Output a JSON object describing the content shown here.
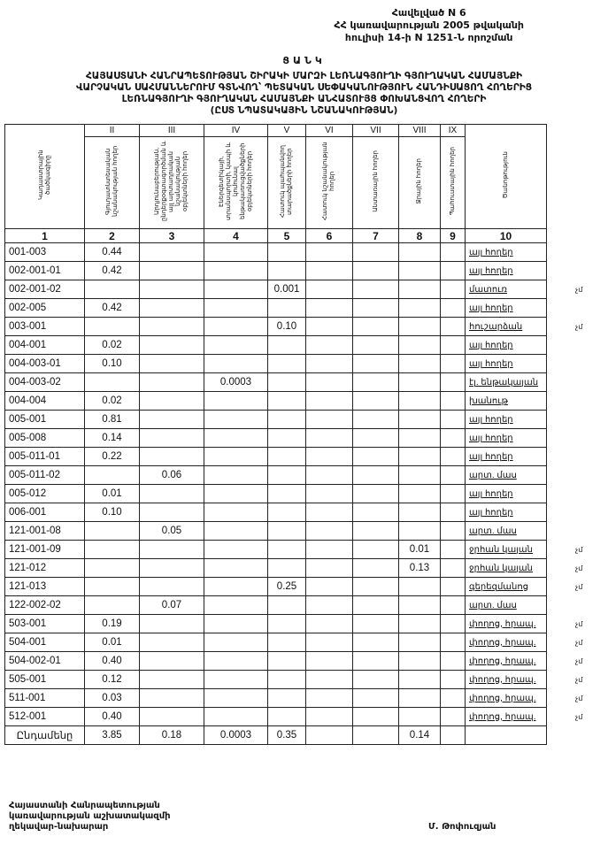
{
  "annex": [
    "Հավելված N 6",
    "ՀՀ կառավարության 2005 թվականի",
    "հուլիսի 14-ի N 1251-Ն որոշման"
  ],
  "list_title": "ՑԱՆԿ",
  "doc_title": [
    "ՀԱՅԱՍՏԱՆԻ ՀԱՆՐԱՊԵՏՈՒԹՅԱՆ ՇԻՐԱԿԻ ՄԱՐԶԻ ԼԵՌՆԱԳՅՈՒՂԻ ԳՅՈՒՂԱԿԱՆ ՀԱՄԱՅՆՔԻ",
    "ՎԱՐՉԱԿԱՆ ՍԱՀՄԱՆՆԵՐՈՒՄ ԳՏՆՎՈՂ՝ ՊԵՏԱԿԱՆ ՍԵՓԱԿԱՆՈՒԹՅՈՒՆ ՀԱՆԴԻՍԱՑՈՂ ՀՈՂԵՐԻՑ",
    "ԼԵՌՆԱԳՅՈՒՂԻ ԳՅՈՒՂԱԿԱՆ ՀԱՄԱՅՆՔԻ ԱՆՀԱՏՈՒՅՑ ՓՈԽԱՆՑՎՈՂ ՀՈՂԵՐԻ",
    "(ԸՍՏ ՆՊԱՏԱԿԱՅԻՆ ՆՇԱՆԱԿՈՒԹՅԱՆ)"
  ],
  "table": {
    "roman": [
      "",
      "II",
      "III",
      "IV",
      "V",
      "VI",
      "VII",
      "VIII",
      "IX",
      ""
    ],
    "headers": [
      "Կադաստրային ծածկագիրը",
      "Գյուղատնտեսական նշանակության հողեր",
      "Արդյունաբերության, ընդերքօգտագործման և այլ արտադրական նշանակության օբյեկտների հողեր",
      "Էներգետիկայի, տրանսպորտի, կապի և կոմունալ ենթակառուցվածքների օբյեկտների հողեր",
      "Հատուկ պահպանվող տարածքների հողեր",
      "Հատուկ նշանակության հողեր",
      "Անտառային հողեր",
      "Ջրային հողեր",
      "Պահուստային հողեր",
      "Ծանոթություն"
    ],
    "numbers": [
      "1",
      "2",
      "3",
      "4",
      "5",
      "6",
      "7",
      "8",
      "9",
      "10"
    ],
    "rows": [
      [
        "001-003",
        "0.44",
        "",
        "",
        "",
        "",
        "",
        "",
        "",
        "այլ հողեր",
        ""
      ],
      [
        "002-001-01",
        "0.42",
        "",
        "",
        "",
        "",
        "",
        "",
        "",
        "այլ հողեր",
        ""
      ],
      [
        "002-001-02",
        "",
        "",
        "",
        "0.001",
        "",
        "",
        "",
        "",
        "մատուռ",
        "չմ"
      ],
      [
        "002-005",
        "0.42",
        "",
        "",
        "",
        "",
        "",
        "",
        "",
        "այլ հողեր",
        ""
      ],
      [
        "003-001",
        "",
        "",
        "",
        "0.10",
        "",
        "",
        "",
        "",
        "հուշարձան",
        "չմ"
      ],
      [
        "004-001",
        "0.02",
        "",
        "",
        "",
        "",
        "",
        "",
        "",
        "այլ հողեր",
        ""
      ],
      [
        "004-003-01",
        "0.10",
        "",
        "",
        "",
        "",
        "",
        "",
        "",
        "այլ հողեր",
        ""
      ],
      [
        "004-003-02",
        "",
        "",
        "0.0003",
        "",
        "",
        "",
        "",
        "",
        "էլ. ենթակայան",
        ""
      ],
      [
        "004-004",
        "0.02",
        "",
        "",
        "",
        "",
        "",
        "",
        "",
        "խանութ",
        ""
      ],
      [
        "005-001",
        "0.81",
        "",
        "",
        "",
        "",
        "",
        "",
        "",
        "այլ հողեր",
        ""
      ],
      [
        "005-008",
        "0.14",
        "",
        "",
        "",
        "",
        "",
        "",
        "",
        "այլ հողեր",
        ""
      ],
      [
        "005-011-01",
        "0.22",
        "",
        "",
        "",
        "",
        "",
        "",
        "",
        "այլ հողեր",
        ""
      ],
      [
        "005-011-02",
        "",
        "0.06",
        "",
        "",
        "",
        "",
        "",
        "",
        "արտ. մաս",
        ""
      ],
      [
        "005-012",
        "0.01",
        "",
        "",
        "",
        "",
        "",
        "",
        "",
        "այլ հողեր",
        ""
      ],
      [
        "006-001",
        "0.10",
        "",
        "",
        "",
        "",
        "",
        "",
        "",
        "այլ հողեր",
        ""
      ],
      [
        "121-001-08",
        "",
        "0.05",
        "",
        "",
        "",
        "",
        "",
        "",
        "արտ. մաս",
        ""
      ],
      [
        "121-001-09",
        "",
        "",
        "",
        "",
        "",
        "",
        "0.01",
        "",
        "ջրհան կայան",
        "չմ"
      ],
      [
        "121-012",
        "",
        "",
        "",
        "",
        "",
        "",
        "0.13",
        "",
        "ջրհան կայան",
        "չմ"
      ],
      [
        "121-013",
        "",
        "",
        "",
        "0.25",
        "",
        "",
        "",
        "",
        "գերեզմանոց",
        "չմ"
      ],
      [
        "122-002-02",
        "",
        "0.07",
        "",
        "",
        "",
        "",
        "",
        "",
        "արտ. մաս",
        ""
      ],
      [
        "503-001",
        "0.19",
        "",
        "",
        "",
        "",
        "",
        "",
        "",
        "փողոց, հրապ.",
        "չմ"
      ],
      [
        "504-001",
        "0.01",
        "",
        "",
        "",
        "",
        "",
        "",
        "",
        "փողոց, հրապ.",
        "չմ"
      ],
      [
        "504-002-01",
        "0.40",
        "",
        "",
        "",
        "",
        "",
        "",
        "",
        "փողոց, հրապ.",
        "չմ"
      ],
      [
        "505-001",
        "0.12",
        "",
        "",
        "",
        "",
        "",
        "",
        "",
        "փողոց, հրապ.",
        "չմ"
      ],
      [
        "511-001",
        "0.03",
        "",
        "",
        "",
        "",
        "",
        "",
        "",
        "փողոց, հրապ.",
        "չմ"
      ],
      [
        "512-001",
        "0.40",
        "",
        "",
        "",
        "",
        "",
        "",
        "",
        "փողոց, հրապ.",
        "չմ"
      ]
    ],
    "total": [
      "Ընդամենը",
      "3.85",
      "0.18",
      "0.0003",
      "0.35",
      "",
      "",
      "0.14",
      "",
      ""
    ]
  },
  "signature": {
    "position": [
      "Հայաստանի Հանրապետության",
      "կառավարության աշխատակազմի",
      "ղեկավար-նախարար"
    ],
    "name": "Մ. Թոփուզյան"
  }
}
